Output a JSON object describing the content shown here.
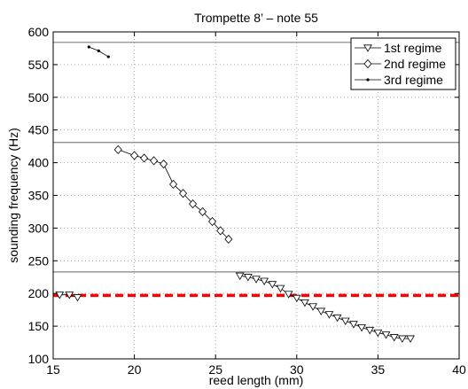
{
  "chart_data": {
    "type": "line",
    "title": "Trompette 8’ – note 55",
    "xlabel": "reed length (mm)",
    "ylabel": "sounding frequency (Hz)",
    "xlim": [
      15,
      40
    ],
    "ylim": [
      100,
      600
    ],
    "x_ticks": [
      "15",
      "20",
      "25",
      "30",
      "35",
      "40"
    ],
    "y_ticks": [
      "100",
      "150",
      "200",
      "250",
      "300",
      "350",
      "400",
      "450",
      "500",
      "550",
      "600"
    ],
    "grid": true,
    "legend_position": "top-right",
    "series": [
      {
        "name": "1st regime",
        "marker": "triangle-down",
        "points": [
          [
            15.4,
            198
          ],
          [
            16.0,
            198
          ],
          [
            16.5,
            194
          ],
          [
            26.5,
            227
          ],
          [
            27.0,
            225
          ],
          [
            27.5,
            222
          ],
          [
            28.0,
            219
          ],
          [
            28.5,
            214
          ],
          [
            29.0,
            208
          ],
          [
            29.5,
            199
          ],
          [
            30.0,
            193
          ],
          [
            30.5,
            186
          ],
          [
            31.0,
            180
          ],
          [
            31.5,
            173
          ],
          [
            32.0,
            168
          ],
          [
            32.5,
            163
          ],
          [
            33.0,
            158
          ],
          [
            33.5,
            153
          ],
          [
            34.0,
            148
          ],
          [
            34.5,
            144
          ],
          [
            35.0,
            140
          ],
          [
            35.5,
            137
          ],
          [
            36.0,
            133
          ],
          [
            36.5,
            131
          ],
          [
            37.0,
            131
          ]
        ]
      },
      {
        "name": "2nd regime",
        "marker": "diamond",
        "points": [
          [
            19.0,
            420
          ],
          [
            20.0,
            411
          ],
          [
            20.6,
            407
          ],
          [
            21.2,
            403
          ],
          [
            21.8,
            398
          ],
          [
            22.4,
            367
          ],
          [
            23.0,
            353
          ],
          [
            23.6,
            337
          ],
          [
            24.2,
            325
          ],
          [
            24.8,
            310
          ],
          [
            25.3,
            296
          ],
          [
            25.8,
            283
          ]
        ]
      },
      {
        "name": "3rd regime",
        "marker": "point",
        "points": [
          [
            17.2,
            577
          ],
          [
            17.8,
            571
          ],
          [
            18.4,
            562
          ]
        ]
      }
    ],
    "reference_lines": [
      {
        "y": 584,
        "color": "#808080"
      },
      {
        "y": 431,
        "color": "#808080"
      },
      {
        "y": 233,
        "color": "#808080"
      },
      {
        "y": 197,
        "color": "#ff0000",
        "style": "dashed"
      }
    ]
  }
}
